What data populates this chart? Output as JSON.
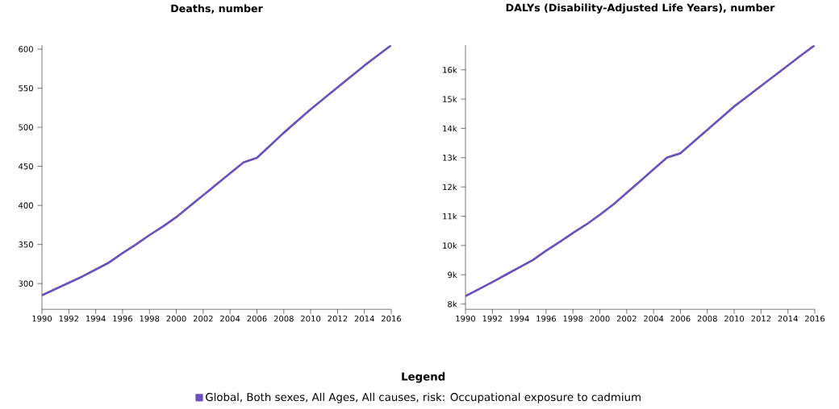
{
  "chart_data": [
    {
      "type": "line",
      "title": "Deaths, number",
      "legend": "bottom",
      "legend_title": "Legend",
      "x": [
        1990,
        1991,
        1992,
        1993,
        1994,
        1995,
        1996,
        1997,
        1998,
        1999,
        2000,
        2001,
        2002,
        2003,
        2004,
        2005,
        2006,
        2007,
        2008,
        2009,
        2010,
        2011,
        2012,
        2013,
        2014,
        2015,
        2016
      ],
      "series": [
        {
          "name": "Global, Both sexes, All Ages, All causes, risk: Occupational exposure to cadmium",
          "color": "#6b4fbb",
          "values": [
            285,
            293,
            301,
            309,
            318,
            327,
            339,
            350,
            362,
            373,
            385,
            399,
            413,
            427,
            441,
            455,
            461,
            477,
            493,
            508,
            523,
            537,
            551,
            565,
            579,
            592,
            605
          ]
        }
      ],
      "xlim": [
        1990,
        2016
      ],
      "ylim": [
        267,
        605
      ],
      "xticks": [
        1990,
        1992,
        1994,
        1996,
        1998,
        2000,
        2002,
        2004,
        2006,
        2008,
        2010,
        2012,
        2014,
        2016
      ],
      "yticks": [
        300,
        350,
        400,
        450,
        500,
        550,
        600
      ]
    },
    {
      "type": "line",
      "title": "DALYs (Disability-Adjusted Life Years), number",
      "x": [
        1990,
        1991,
        1992,
        1993,
        1994,
        1995,
        1996,
        1997,
        1998,
        1999,
        2000,
        2001,
        2002,
        2003,
        2004,
        2005,
        2006,
        2007,
        2008,
        2009,
        2010,
        2011,
        2012,
        2013,
        2014,
        2015,
        2016
      ],
      "series": [
        {
          "color": "#6b4fbb",
          "values": [
            8270,
            8510,
            8750,
            9000,
            9250,
            9500,
            9820,
            10120,
            10430,
            10720,
            11050,
            11400,
            11800,
            12200,
            12600,
            13000,
            13150,
            13550,
            13950,
            14350,
            14750,
            15100,
            15450,
            15800,
            16150,
            16500,
            16840
          ]
        }
      ],
      "xlim": [
        1990,
        2016
      ],
      "ylim": [
        7820,
        16840
      ],
      "xticks": [
        1990,
        1992,
        1994,
        1996,
        1998,
        2000,
        2002,
        2004,
        2006,
        2008,
        2010,
        2012,
        2014,
        2016
      ],
      "yticks": [
        {
          "value": 8000,
          "label": "8k"
        },
        {
          "value": 9000,
          "label": "9k"
        },
        {
          "value": 10000,
          "label": "10k"
        },
        {
          "value": 11000,
          "label": "11k"
        },
        {
          "value": 12000,
          "label": "12k"
        },
        {
          "value": 13000,
          "label": "13k"
        },
        {
          "value": 14000,
          "label": "14k"
        },
        {
          "value": 15000,
          "label": "15k"
        },
        {
          "value": 16000,
          "label": "16k"
        }
      ]
    }
  ]
}
